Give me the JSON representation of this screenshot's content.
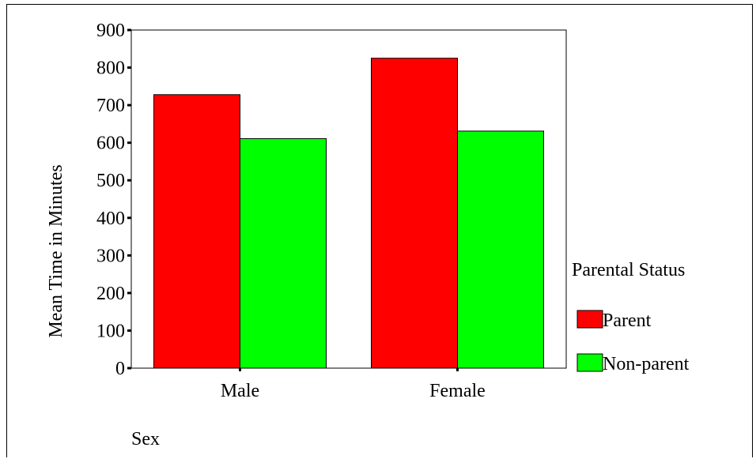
{
  "chart_data": {
    "type": "bar",
    "categories": [
      "Male",
      "Female"
    ],
    "series": [
      {
        "name": "Parent",
        "values": [
          728,
          825
        ],
        "color": "#ff0000"
      },
      {
        "name": "Non-parent",
        "values": [
          611,
          631
        ],
        "color": "#00ff00"
      }
    ],
    "ylim": [
      0,
      900
    ],
    "yticks": [
      "0",
      "100",
      "200",
      "300",
      "400",
      "500",
      "600",
      "700",
      "800",
      "900"
    ],
    "ylabel": "Mean Time in Minutes",
    "xlabel": "Sex",
    "legend": {
      "title": "Parental Status",
      "placement": "right"
    },
    "grid": false
  }
}
